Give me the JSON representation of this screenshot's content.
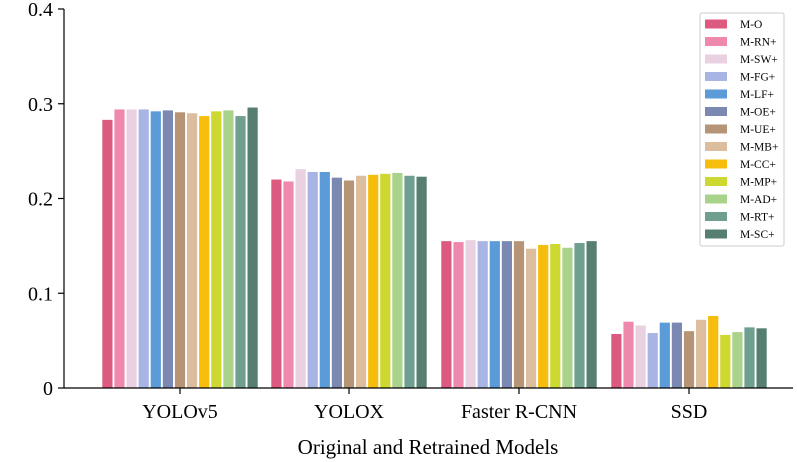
{
  "chart_data": {
    "type": "bar",
    "title": "",
    "xlabel": "Original and Retrained Models",
    "ylabel": "",
    "ylim": [
      0,
      0.4
    ],
    "yticks": [
      {
        "value": 0,
        "label": "0"
      },
      {
        "value": 0.1,
        "label": "0.1"
      },
      {
        "value": 0.2,
        "label": "0.2"
      },
      {
        "value": 0.3,
        "label": "0.3"
      },
      {
        "value": 0.4,
        "label": "0.4"
      }
    ],
    "categories": [
      "YOLOv5",
      "YOLOX",
      "Faster R-CNN",
      "SSD"
    ],
    "legend_position": "top-right",
    "series": [
      {
        "name": "M-O",
        "color": "#dc5a80",
        "values": [
          0.283,
          0.22,
          0.155,
          0.057
        ]
      },
      {
        "name": "M-RN+",
        "color": "#ee88ad",
        "values": [
          0.294,
          0.218,
          0.154,
          0.07
        ]
      },
      {
        "name": "M-SW+",
        "color": "#e9d1e2",
        "values": [
          0.294,
          0.231,
          0.156,
          0.066
        ]
      },
      {
        "name": "M-FG+",
        "color": "#a8b4e3",
        "values": [
          0.294,
          0.228,
          0.155,
          0.058
        ]
      },
      {
        "name": "M-LF+",
        "color": "#5b9bd8",
        "values": [
          0.292,
          0.228,
          0.155,
          0.069
        ]
      },
      {
        "name": "M-OE+",
        "color": "#7a88b2",
        "values": [
          0.293,
          0.222,
          0.155,
          0.069
        ]
      },
      {
        "name": "M-UE+",
        "color": "#b69577",
        "values": [
          0.291,
          0.219,
          0.155,
          0.06
        ]
      },
      {
        "name": "M-MB+",
        "color": "#dcbd9d",
        "values": [
          0.29,
          0.224,
          0.147,
          0.072
        ]
      },
      {
        "name": "M-CC+",
        "color": "#f7bd0d",
        "values": [
          0.287,
          0.225,
          0.151,
          0.076
        ]
      },
      {
        "name": "M-MP+",
        "color": "#cdd831",
        "values": [
          0.292,
          0.226,
          0.152,
          0.056
        ]
      },
      {
        "name": "M-AD+",
        "color": "#a9d28b",
        "values": [
          0.293,
          0.227,
          0.148,
          0.059
        ]
      },
      {
        "name": "M-RT+",
        "color": "#6f9f90",
        "values": [
          0.287,
          0.224,
          0.153,
          0.064
        ]
      },
      {
        "name": "M-SC+",
        "color": "#567f71",
        "values": [
          0.296,
          0.223,
          0.155,
          0.063
        ]
      }
    ]
  }
}
